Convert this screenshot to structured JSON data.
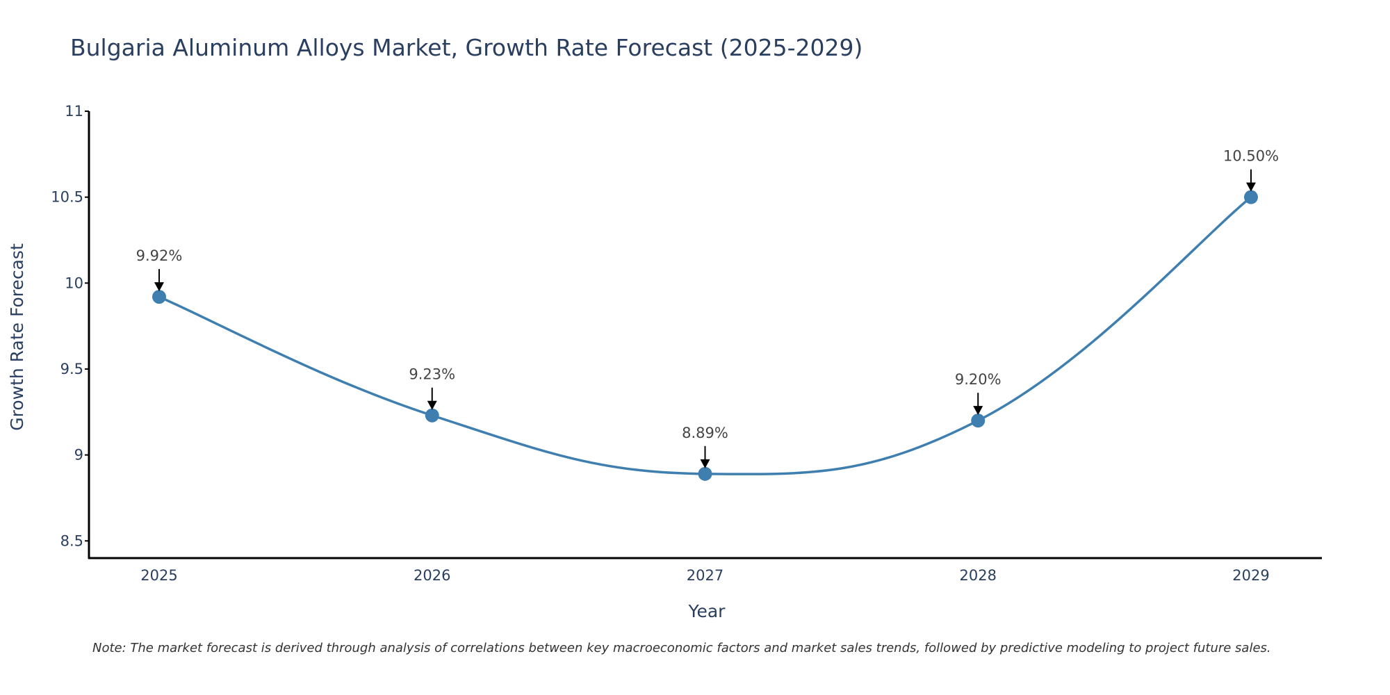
{
  "chart_data": {
    "type": "line",
    "title": "Bulgaria Aluminum Alloys Market, Growth Rate Forecast (2025-2029)",
    "xlabel": "Year",
    "ylabel": "Growth Rate Forecast",
    "categories": [
      "2025",
      "2026",
      "2027",
      "2028",
      "2029"
    ],
    "values": [
      9.92,
      9.23,
      8.89,
      9.2,
      10.5
    ],
    "data_labels": [
      "9.92%",
      "9.23%",
      "8.89%",
      "9.20%",
      "10.50%"
    ],
    "ylim": [
      8.4,
      11
    ],
    "yticks": [
      8.5,
      9,
      9.5,
      10,
      10.5,
      11
    ],
    "ytick_labels": [
      "8.5",
      "9",
      "9.5",
      "10",
      "10.5",
      "11"
    ],
    "grid": false,
    "legend": "none",
    "line_shape": "spline",
    "note": "Note: The market forecast is derived through analysis of correlations between key macroeconomic factors and market sales trends, followed by predictive modeling to project future sales."
  },
  "colors": {
    "series": "#3f7fb0",
    "marker": "#3f7fb0",
    "axis": "#000000",
    "text": "#2a3f5f",
    "arrow": "#000000",
    "label": "#444444"
  }
}
